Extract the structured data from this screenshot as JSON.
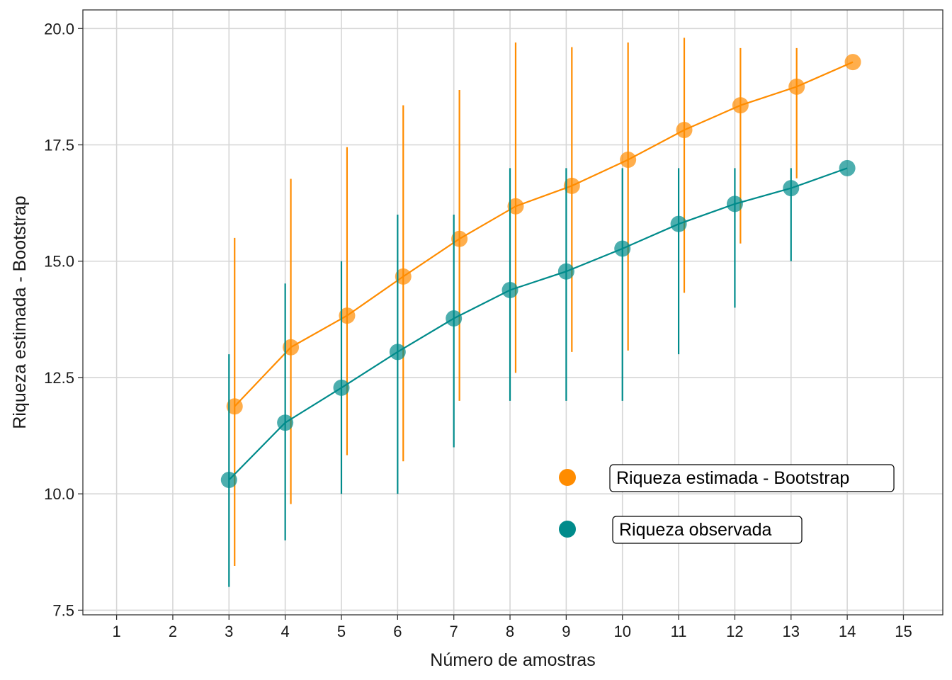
{
  "chart_data": {
    "type": "scatter",
    "title": "",
    "xlabel": "Número de amostras",
    "ylabel": "Riqueza estimada - Bootstrap",
    "xlim": [
      0.4,
      15.7
    ],
    "ylim": [
      7.4,
      20.4
    ],
    "x_ticks": [
      "1",
      "2",
      "3",
      "4",
      "5",
      "6",
      "7",
      "8",
      "9",
      "10",
      "11",
      "12",
      "13",
      "14",
      "15"
    ],
    "y_ticks": [
      "7.5",
      "10.0",
      "12.5",
      "15.0",
      "17.5",
      "20.0"
    ],
    "grid": true,
    "legend_position": "bottom-right",
    "series": [
      {
        "name": "Riqueza estimada - Bootstrap",
        "color": "#FF8C00",
        "x_offset": 0.1,
        "points": [
          {
            "x": 3,
            "y": 11.88,
            "lo": 8.45,
            "hi": 15.5
          },
          {
            "x": 4,
            "y": 13.15,
            "lo": 9.78,
            "hi": 16.77
          },
          {
            "x": 5,
            "y": 13.83,
            "lo": 10.83,
            "hi": 17.45
          },
          {
            "x": 6,
            "y": 14.67,
            "lo": 10.7,
            "hi": 18.35
          },
          {
            "x": 7,
            "y": 15.48,
            "lo": 12.0,
            "hi": 18.68
          },
          {
            "x": 8,
            "y": 16.18,
            "lo": 12.6,
            "hi": 19.7
          },
          {
            "x": 9,
            "y": 16.62,
            "lo": 13.05,
            "hi": 19.6
          },
          {
            "x": 10,
            "y": 17.18,
            "lo": 13.08,
            "hi": 19.7
          },
          {
            "x": 11,
            "y": 17.82,
            "lo": 14.32,
            "hi": 19.8
          },
          {
            "x": 12,
            "y": 18.35,
            "lo": 15.38,
            "hi": 19.58
          },
          {
            "x": 13,
            "y": 18.75,
            "lo": 16.78,
            "hi": 19.58
          },
          {
            "x": 14,
            "y": 19.28,
            "lo": 19.28,
            "hi": 19.28
          }
        ]
      },
      {
        "name": "Riqueza observada",
        "color": "#008B8B",
        "x_offset": 0,
        "points": [
          {
            "x": 3,
            "y": 10.3,
            "lo": 8.0,
            "hi": 13.0
          },
          {
            "x": 4,
            "y": 11.53,
            "lo": 9.0,
            "hi": 14.52
          },
          {
            "x": 5,
            "y": 12.28,
            "lo": 10.0,
            "hi": 15.0
          },
          {
            "x": 6,
            "y": 13.05,
            "lo": 10.0,
            "hi": 16.0
          },
          {
            "x": 7,
            "y": 13.77,
            "lo": 11.0,
            "hi": 16.0
          },
          {
            "x": 8,
            "y": 14.38,
            "lo": 12.0,
            "hi": 17.0
          },
          {
            "x": 9,
            "y": 14.78,
            "lo": 12.0,
            "hi": 17.0
          },
          {
            "x": 10,
            "y": 15.27,
            "lo": 12.0,
            "hi": 17.0
          },
          {
            "x": 11,
            "y": 15.8,
            "lo": 13.0,
            "hi": 17.0
          },
          {
            "x": 12,
            "y": 16.23,
            "lo": 14.0,
            "hi": 17.0
          },
          {
            "x": 13,
            "y": 16.57,
            "lo": 15.0,
            "hi": 17.0
          },
          {
            "x": 14,
            "y": 17.0,
            "lo": 17.0,
            "hi": 17.0
          }
        ]
      }
    ]
  }
}
